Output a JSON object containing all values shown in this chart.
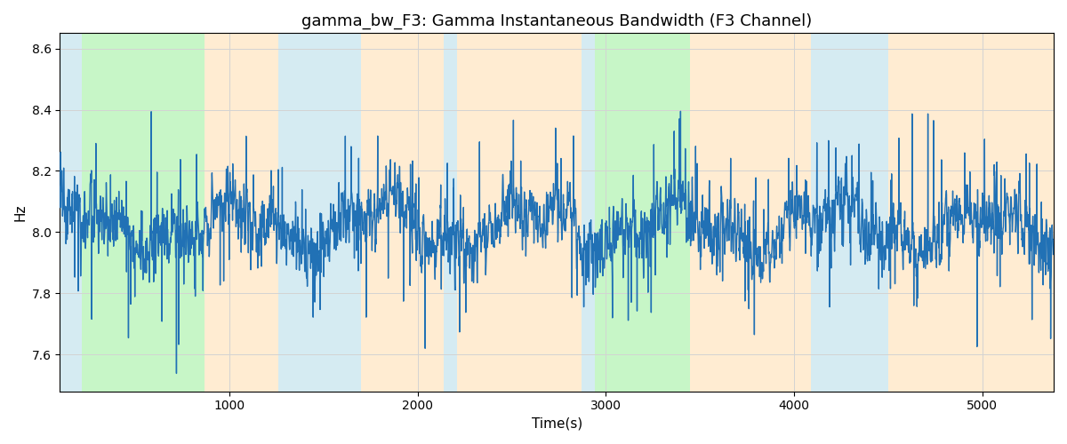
{
  "title": "gamma_bw_F3: Gamma Instantaneous Bandwidth (F3 Channel)",
  "xlabel": "Time(s)",
  "ylabel": "Hz",
  "ylim": [
    7.48,
    8.65
  ],
  "xlim": [
    100,
    5380
  ],
  "line_color": "#2171b5",
  "line_width": 1.0,
  "bg_color": "white",
  "bands": [
    {
      "xmin": 100,
      "xmax": 215,
      "color": "#add8e6",
      "alpha": 0.5
    },
    {
      "xmin": 215,
      "xmax": 870,
      "color": "#90ee90",
      "alpha": 0.5
    },
    {
      "xmin": 870,
      "xmax": 1260,
      "color": "#ffdead",
      "alpha": 0.55
    },
    {
      "xmin": 1260,
      "xmax": 1700,
      "color": "#add8e6",
      "alpha": 0.5
    },
    {
      "xmin": 1700,
      "xmax": 2140,
      "color": "#ffdead",
      "alpha": 0.55
    },
    {
      "xmin": 2140,
      "xmax": 2210,
      "color": "#add8e6",
      "alpha": 0.5
    },
    {
      "xmin": 2210,
      "xmax": 2870,
      "color": "#ffdead",
      "alpha": 0.55
    },
    {
      "xmin": 2870,
      "xmax": 2940,
      "color": "#add8e6",
      "alpha": 0.5
    },
    {
      "xmin": 2940,
      "xmax": 3450,
      "color": "#90ee90",
      "alpha": 0.5
    },
    {
      "xmin": 3450,
      "xmax": 4090,
      "color": "#ffdead",
      "alpha": 0.55
    },
    {
      "xmin": 4090,
      "xmax": 4500,
      "color": "#add8e6",
      "alpha": 0.5
    },
    {
      "xmin": 4500,
      "xmax": 5380,
      "color": "#ffdead",
      "alpha": 0.55
    }
  ],
  "seed": 12345,
  "n_points": 5280,
  "t_start": 100,
  "t_end": 5380,
  "mean": 8.02,
  "title_fontsize": 13,
  "label_fontsize": 11
}
